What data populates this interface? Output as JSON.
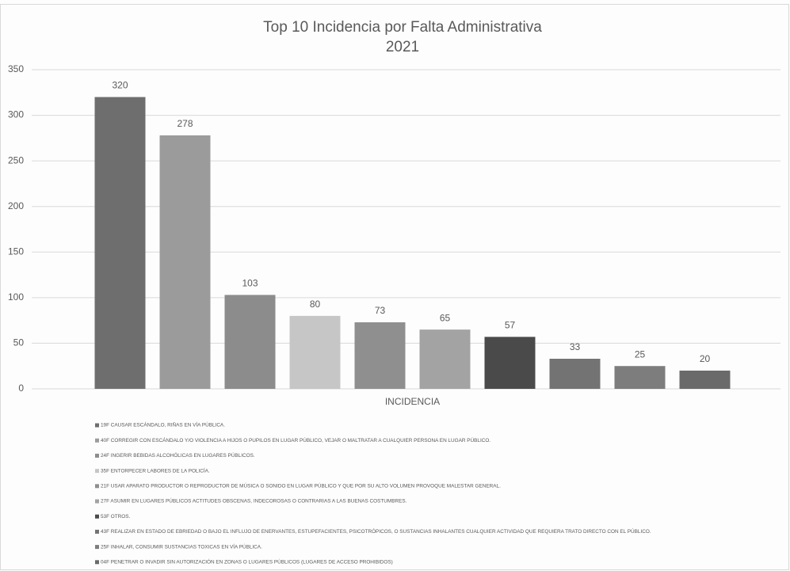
{
  "chart_data": {
    "type": "bar",
    "title": "Top 10 Incidencia por Falta Administrativa",
    "subtitle": "2021",
    "categories": [
      "INCIDENCIA"
    ],
    "series": [
      {
        "name": "19F CAUSAR ESCÁNDALO, RIÑAS EN VÍA PÚBLICA.",
        "color": "#6e6e6e",
        "values": [
          320
        ]
      },
      {
        "name": "40F CORREGIR CON ESCÁNDALO Y/O VIOLENCIA A HIJOS O PUPILOS EN LUGAR PÚBLICO, VEJAR O MALTRATAR A CUALQUIER PERSONA EN LUGAR PÚBLICO.",
        "color": "#9b9b9b",
        "values": [
          278
        ]
      },
      {
        "name": "24F INGERIR BEBIDAS ALCOHÓLICAS EN LUGARES PÚBLICOS.",
        "color": "#8c8c8c",
        "values": [
          103
        ]
      },
      {
        "name": "35F ENTORPECER LABORES DE LA POLICÍA.",
        "color": "#c6c6c6",
        "values": [
          80
        ]
      },
      {
        "name": "21F USAR APARATO PRODUCTOR O REPRODUCTOR DE MÚSICA O SONIDO EN LUGAR PÚBLICO Y QUE POR SU ALTO VOLUMEN PROVOQUE MALESTAR GENERAL.",
        "color": "#8f8f8f",
        "values": [
          73
        ]
      },
      {
        "name": "27F ASUMIR EN LUGARES PÚBLICOS ACTITUDES OBSCENAS, INDECOROSAS O CONTRARIAS A LAS BUENAS COSTUMBRES.",
        "color": "#a3a3a3",
        "values": [
          65
        ]
      },
      {
        "name": "53F OTROS.",
        "color": "#4a4a4a",
        "values": [
          57
        ]
      },
      {
        "name": "43F REALIZAR EN ESTADO DE EBRIEDAD O BAJO EL INFLUJO DE ENERVANTES, ESTUPEFACIENTES, PSICOTRÓPICOS, O SUSTANCIAS INHALANTES CUALQUIER ACTIVIDAD QUE REQUIERA TRATO DIRECTO CON EL PÚBLICO.",
        "color": "#737373",
        "values": [
          33
        ]
      },
      {
        "name": "25F INHALAR, CONSUMIR SUSTANCIAS TOXICAS EN VÍA PÚBLICA.",
        "color": "#7d7d7d",
        "values": [
          25
        ]
      },
      {
        "name": "04F PENETRAR O INVADIR SIN AUTORIZACIÓN EN ZONAS O LUGARES PÚBLICOS (LUGARES DE ACCESO PROHIBIDOS)",
        "color": "#6a6a6a",
        "values": [
          20
        ]
      }
    ],
    "ylim": [
      0,
      350
    ],
    "yticks": [
      0,
      50,
      100,
      150,
      200,
      250,
      300,
      350
    ],
    "grid": true
  }
}
